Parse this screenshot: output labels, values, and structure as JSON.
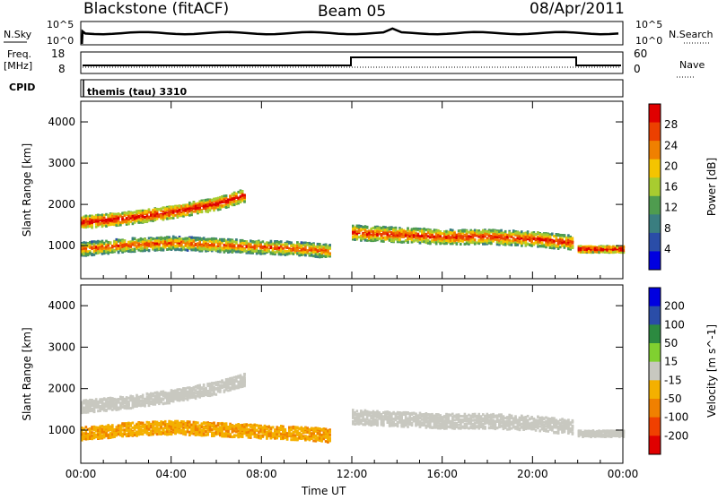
{
  "header": {
    "station": "Blackstone (fitACF)",
    "beam": "Beam 05",
    "date": "08/Apr/2011"
  },
  "top_panels": {
    "nsky_label": "N.Sky",
    "nsearch_label": "N.Search",
    "noise_ticks": [
      "10^5",
      "10^0"
    ],
    "freq_label_1": "Freq.",
    "freq_label_2": "[MHz]",
    "freq_ticks": [
      "18",
      "8"
    ],
    "nave_label": "Nave",
    "nave_ticks": [
      "60",
      "0"
    ],
    "cpid_label": "CPID",
    "cpid_text": "themis (tau) 3310"
  },
  "chart_data": [
    {
      "type": "heatmap",
      "title": "",
      "ylabel": "Slant Range [km]",
      "xlabel": "Time UT",
      "ylim": [
        200,
        4500
      ],
      "yticks": [
        1000,
        2000,
        3000,
        4000
      ],
      "xlim_hours": [
        0,
        24
      ],
      "xticks": [
        "00:00",
        "04:00",
        "08:00",
        "12:00",
        "16:00",
        "20:00",
        "00:00"
      ],
      "colorbar": {
        "label": "Power [dB]",
        "ticks": [
          "28",
          "24",
          "20",
          "16",
          "12",
          "8",
          "4"
        ],
        "range": [
          0,
          30
        ],
        "colors": [
          "#0000e0",
          "#2a4da8",
          "#3a7e80",
          "#4f9c4f",
          "#a8cc30",
          "#f4c400",
          "#f08000",
          "#ec4000",
          "#e00000"
        ]
      },
      "echo_bands": [
        {
          "t": [
            0.0,
            2.0,
            4.0,
            6.0,
            7.2
          ],
          "range": [
            1550,
            1650,
            1800,
            2000,
            2200
          ],
          "width": 300,
          "power": 24
        },
        {
          "t": [
            0.0,
            2.0,
            4.0,
            6.0,
            8.0,
            10.0,
            11.0
          ],
          "range": [
            900,
            1000,
            1050,
            1000,
            950,
            900,
            850
          ],
          "width": 320,
          "power": 20
        },
        {
          "t": [
            12.0,
            14.0,
            16.0,
            18.0,
            20.0,
            21.8
          ],
          "range": [
            1300,
            1250,
            1200,
            1200,
            1150,
            1050
          ],
          "width": 350,
          "power": 22
        },
        {
          "t": [
            22.0,
            24.0
          ],
          "range": [
            900,
            900
          ],
          "width": 150,
          "power": 26
        }
      ]
    },
    {
      "type": "heatmap",
      "title": "",
      "ylabel": "Slant Range [km]",
      "xlabel": "Time UT",
      "ylim": [
        200,
        4500
      ],
      "yticks": [
        1000,
        2000,
        3000,
        4000
      ],
      "xlim_hours": [
        0,
        24
      ],
      "xticks": [
        "00:00",
        "04:00",
        "08:00",
        "12:00",
        "16:00",
        "20:00",
        "00:00"
      ],
      "colorbar": {
        "label": "Velocity [m s^-1]",
        "ticks": [
          "200",
          "100",
          "50",
          "15",
          "-15",
          "-50",
          "-100",
          "-200"
        ],
        "range": [
          -200,
          200
        ],
        "colors": [
          "#e00000",
          "#f04000",
          "#f08000",
          "#f4b000",
          "#c8c8c0",
          "#80d030",
          "#2c8a40",
          "#2a4da8",
          "#0000e0"
        ]
      },
      "echo_bands": [
        {
          "t": [
            0.0,
            2.0,
            4.0,
            6.0,
            7.2
          ],
          "range": [
            1550,
            1650,
            1800,
            2000,
            2200
          ],
          "width": 300,
          "velocity": 0
        },
        {
          "t": [
            0.0,
            2.0,
            4.0,
            6.0,
            8.0,
            10.0,
            11.0
          ],
          "range": [
            900,
            1000,
            1050,
            1000,
            950,
            900,
            850
          ],
          "width": 320,
          "velocity": -60
        },
        {
          "t": [
            12.0,
            14.0,
            16.0,
            18.0,
            20.0,
            21.8
          ],
          "range": [
            1300,
            1250,
            1200,
            1200,
            1150,
            1050
          ],
          "width": 350,
          "velocity": 0
        },
        {
          "t": [
            22.0,
            24.0
          ],
          "range": [
            900,
            900
          ],
          "width": 150,
          "velocity": 0
        }
      ]
    }
  ]
}
